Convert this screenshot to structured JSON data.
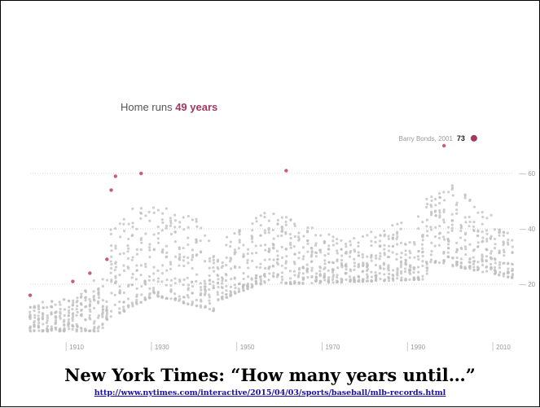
{
  "chart_data": {
    "type": "scatter",
    "title_prefix": "Home runs ",
    "title_highlight": "49 years",
    "xlim": [
      1901,
      2014
    ],
    "ylim": [
      0,
      80
    ],
    "x_ticks": [
      {
        "value": 1910,
        "label": "1910"
      },
      {
        "value": 1930,
        "label": "1930"
      },
      {
        "value": 1950,
        "label": "1950"
      },
      {
        "value": 1970,
        "label": "1970"
      },
      {
        "value": 1990,
        "label": "1990"
      },
      {
        "value": 2010,
        "label": "2010"
      }
    ],
    "y_ticks": [
      {
        "value": 20,
        "label": "20"
      },
      {
        "value": 40,
        "label": "40"
      },
      {
        "value": 60,
        "label": "60"
      }
    ],
    "grid": true,
    "records": [
      {
        "year": 1901,
        "value": 16
      },
      {
        "year": 1911,
        "value": 21
      },
      {
        "year": 1915,
        "value": 24
      },
      {
        "year": 1919,
        "value": 29
      },
      {
        "year": 1920,
        "value": 54
      },
      {
        "year": 1921,
        "value": 59
      },
      {
        "year": 1927,
        "value": 60
      },
      {
        "year": 1961,
        "value": 61
      },
      {
        "year": 1998,
        "value": 70
      },
      {
        "year": 2001,
        "value": 73
      }
    ],
    "annotation": {
      "name": "Barry Bonds, 2001",
      "value_label": "73",
      "year": 2001,
      "value": 73
    },
    "colors": {
      "record": "#c95b82",
      "highlight": "#a1385f",
      "dots": "#bdbdbd",
      "grid": "#d0d0d0"
    }
  },
  "caption": {
    "title": "New York Times: “How many years until…”",
    "url": "http://www.nytimes.com/interactive/2015/04/03/sports/baseball/mlb-records.html"
  }
}
